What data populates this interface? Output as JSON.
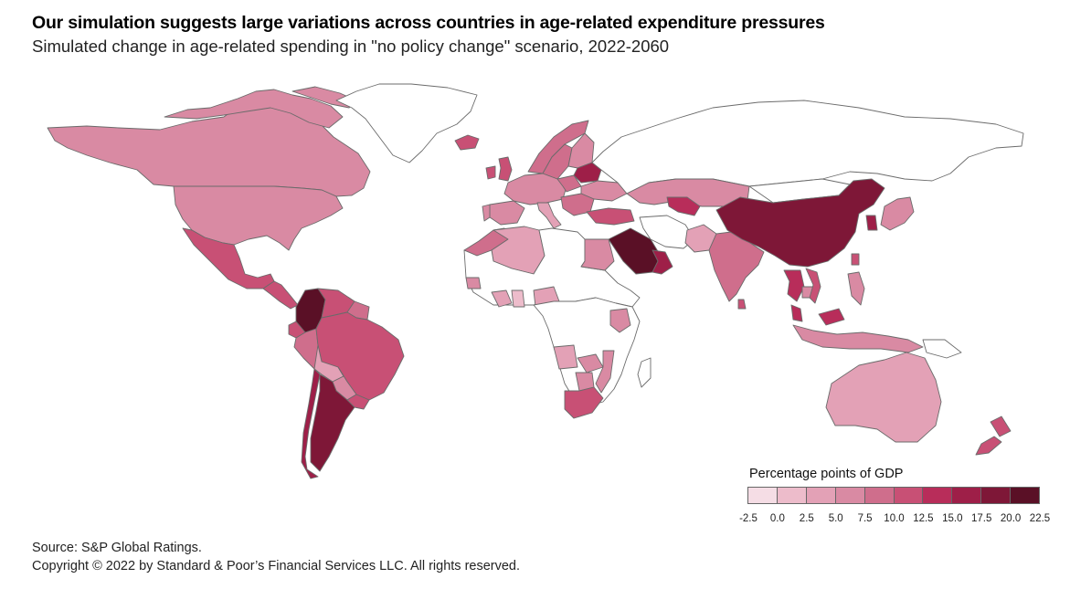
{
  "header": {
    "title": "Our simulation suggests large variations across countries in age-related expenditure pressures",
    "subtitle": "Simulated change in age-related spending in \"no policy change\" scenario, 2022-2060"
  },
  "legend": {
    "title": "Percentage points of GDP",
    "ticks": [
      "-2.5",
      "0.0",
      "2.5",
      "5.0",
      "7.5",
      "10.0",
      "12.5",
      "15.0",
      "17.5",
      "20.0",
      "22.5"
    ],
    "colors": [
      "#f5dde5",
      "#edbccb",
      "#e3a1b6",
      "#d98aa3",
      "#cf6e8c",
      "#c85075",
      "#b82d5a",
      "#9e1f48",
      "#7e1737",
      "#5a1026"
    ]
  },
  "footer": {
    "source": "Source: S&P Global Ratings.",
    "copyright": "Copyright © 2022 by Standard & Poor’s Financial Services LLC. All rights reserved."
  },
  "map_data": {
    "no_data_color": "#ffffff",
    "regions": [
      {
        "name": "Canada",
        "value": 6.5
      },
      {
        "name": "Greenland",
        "value": null
      },
      {
        "name": "United States",
        "value": 7.0
      },
      {
        "name": "Mexico",
        "value": 12.0
      },
      {
        "name": "Central America",
        "value": 10.0
      },
      {
        "name": "Colombia",
        "value": 20.0
      },
      {
        "name": "Venezuela",
        "value": 10.0
      },
      {
        "name": "Guyana",
        "value": 7.5
      },
      {
        "name": "Brazil",
        "value": 10.0
      },
      {
        "name": "Ecuador",
        "value": 10.5
      },
      {
        "name": "Peru",
        "value": 9.0
      },
      {
        "name": "Bolivia",
        "value": 4.0
      },
      {
        "name": "Paraguay",
        "value": 6.0
      },
      {
        "name": "Chile",
        "value": 16.5
      },
      {
        "name": "Argentina",
        "value": 19.0
      },
      {
        "name": "Uruguay",
        "value": 10.0
      },
      {
        "name": "Iceland",
        "value": 10.5
      },
      {
        "name": "Norway",
        "value": 9.5
      },
      {
        "name": "Sweden",
        "value": 7.5
      },
      {
        "name": "Finland",
        "value": 5.5
      },
      {
        "name": "United Kingdom",
        "value": 10.0
      },
      {
        "name": "Ireland",
        "value": 12.0
      },
      {
        "name": "Western Europe",
        "value": 5.5
      },
      {
        "name": "Spain",
        "value": 7.0
      },
      {
        "name": "Portugal",
        "value": 5.0
      },
      {
        "name": "Italy",
        "value": 3.0
      },
      {
        "name": "Poland",
        "value": 9.0
      },
      {
        "name": "Belarus",
        "value": 15.0
      },
      {
        "name": "Ukraine",
        "value": 7.0
      },
      {
        "name": "Balkans",
        "value": 7.5
      },
      {
        "name": "Turkey",
        "value": 10.0
      },
      {
        "name": "Russia",
        "value": null
      },
      {
        "name": "Kazakhstan",
        "value": 5.0
      },
      {
        "name": "Uzbekistan",
        "value": 14.0
      },
      {
        "name": "Morocco",
        "value": 9.0
      },
      {
        "name": "Algeria",
        "value": 2.5
      },
      {
        "name": "Egypt",
        "value": 5.0
      },
      {
        "name": "Saudi Arabia",
        "value": 20.0
      },
      {
        "name": "Oman",
        "value": 15.5
      },
      {
        "name": "Iran",
        "value": null
      },
      {
        "name": "Pakistan",
        "value": 3.0
      },
      {
        "name": "India",
        "value": 7.5
      },
      {
        "name": "Sri Lanka",
        "value": 10.0
      },
      {
        "name": "China",
        "value": 17.5
      },
      {
        "name": "Mongolia",
        "value": null
      },
      {
        "name": "South Korea",
        "value": 15.0
      },
      {
        "name": "Japan",
        "value": 7.0
      },
      {
        "name": "Taiwan",
        "value": 11.0
      },
      {
        "name": "Thailand",
        "value": 12.5
      },
      {
        "name": "Vietnam",
        "value": 10.0
      },
      {
        "name": "Cambodia",
        "value": 6.0
      },
      {
        "name": "Malaysia",
        "value": 13.0
      },
      {
        "name": "Philippines",
        "value": 6.0
      },
      {
        "name": "Indonesia",
        "value": 6.0
      },
      {
        "name": "Papua New Guinea",
        "value": null
      },
      {
        "name": "Australia",
        "value": 3.5
      },
      {
        "name": "New Zealand",
        "value": 11.5
      },
      {
        "name": "Senegal",
        "value": 6.0
      },
      {
        "name": "Ivory Coast",
        "value": 4.5
      },
      {
        "name": "Ghana",
        "value": 2.0
      },
      {
        "name": "Nigeria",
        "value": 2.5
      },
      {
        "name": "Kenya",
        "value": 6.0
      },
      {
        "name": "Angola",
        "value": 2.5
      },
      {
        "name": "Zambia",
        "value": 5.0
      },
      {
        "name": "Botswana",
        "value": 5.5
      },
      {
        "name": "Mozambique",
        "value": 5.5
      },
      {
        "name": "South Africa",
        "value": 10.5
      }
    ]
  }
}
